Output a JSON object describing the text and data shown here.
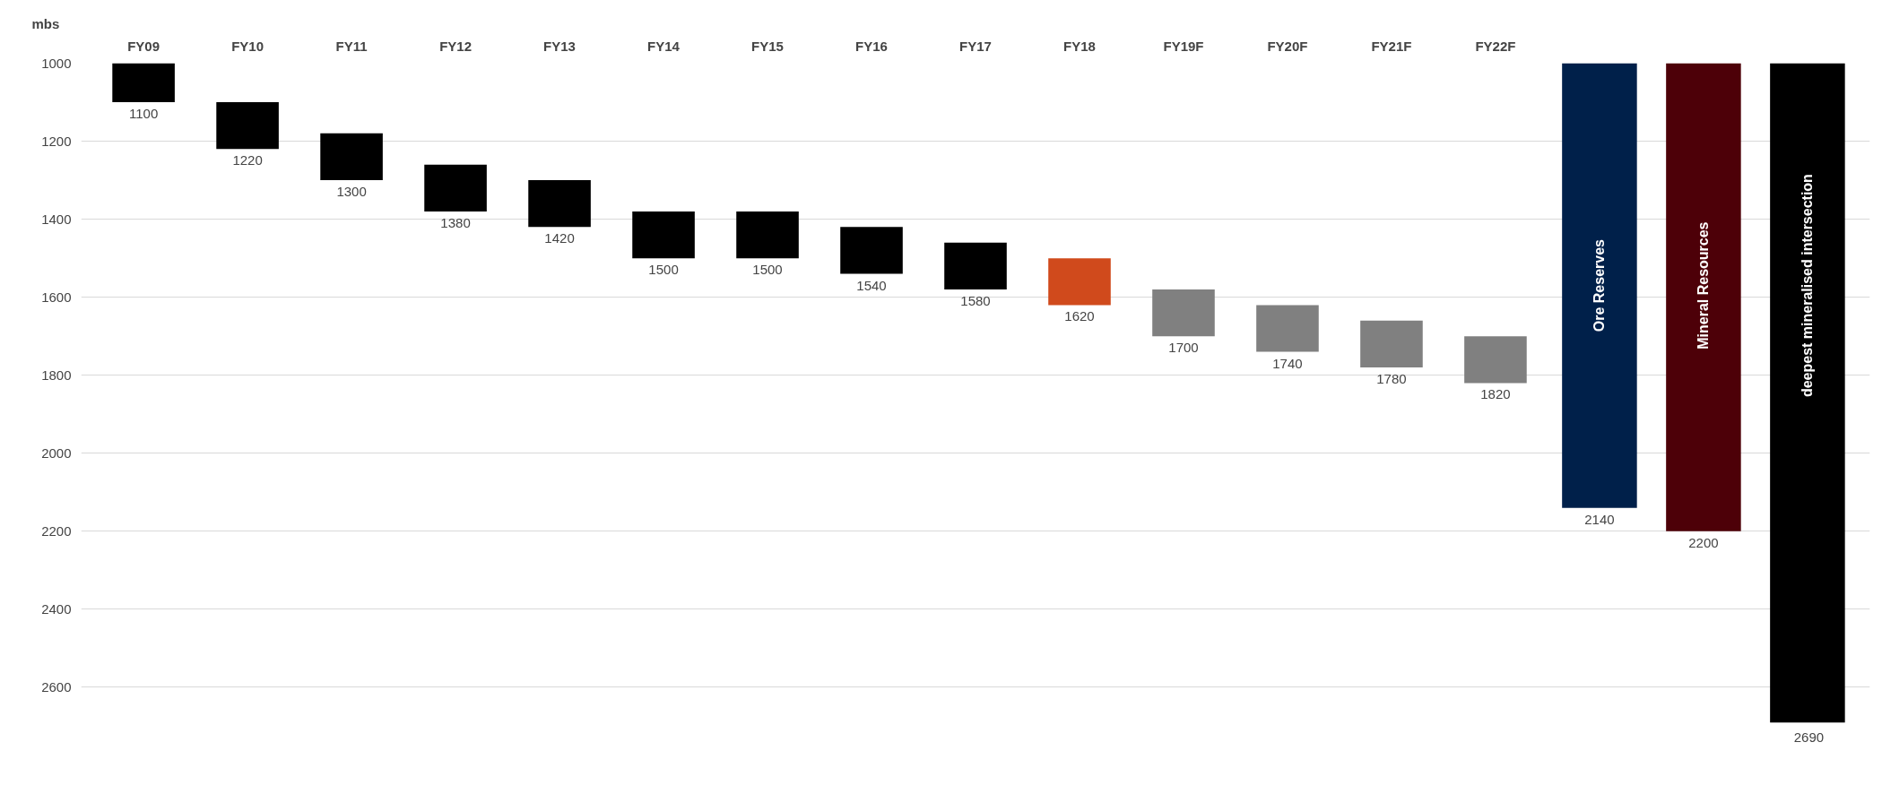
{
  "chart_data": {
    "type": "bar",
    "ylabel": "mbs",
    "categories": [
      "FY09",
      "FY10",
      "FY11",
      "FY12",
      "FY13",
      "FY14",
      "FY15",
      "FY16",
      "FY17",
      "FY18",
      "FY19F",
      "FY20F",
      "FY21F",
      "FY22F",
      null,
      null,
      null
    ],
    "base": [
      1000,
      1100,
      1180,
      1260,
      1300,
      1380,
      1380,
      1420,
      1460,
      1500,
      1580,
      1620,
      1660,
      1700,
      1000,
      1000,
      1000
    ],
    "values": [
      100,
      120,
      120,
      120,
      120,
      120,
      120,
      120,
      120,
      120,
      120,
      120,
      120,
      120,
      1140,
      1200,
      1690
    ],
    "colors": [
      "#000000",
      "#000000",
      "#000000",
      "#000000",
      "#000000",
      "#000000",
      "#000000",
      "#000000",
      "#000000",
      "#d04a1c",
      "#808080",
      "#808080",
      "#808080",
      "#808080",
      "#00204a",
      "#4d0008",
      "#000000"
    ],
    "value_labels": [
      "1100",
      "1220",
      "1300",
      "1380",
      "1420",
      "1500",
      "1500",
      "1540",
      "1580",
      "1620",
      "1700",
      "1740",
      "1780",
      "1820",
      "2140",
      "2200",
      "2690"
    ],
    "annotations": [
      "Ore Reserves",
      "Mineral Resources",
      "deepest mineralised intersection"
    ],
    "ylim": [
      2700,
      1000
    ],
    "yticks": [
      1000,
      1200,
      1400,
      1600,
      1800,
      2000,
      2200,
      2400,
      2600
    ],
    "grid": "y"
  }
}
